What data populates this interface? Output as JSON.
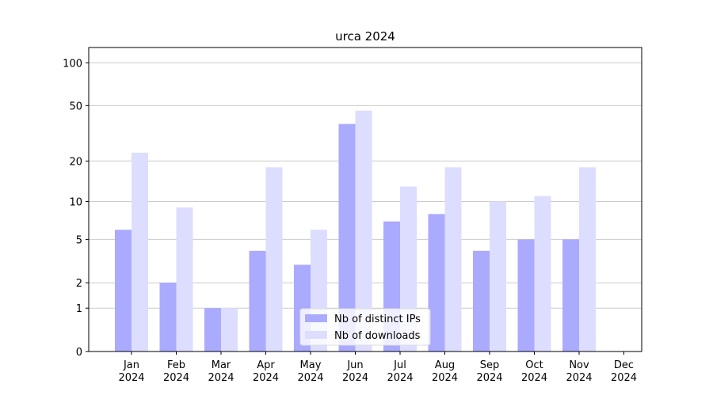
{
  "chart_data": {
    "type": "bar",
    "title": "urca 2024",
    "categories": [
      "Jan\n2024",
      "Feb\n2024",
      "Mar\n2024",
      "Apr\n2024",
      "May\n2024",
      "Jun\n2024",
      "Jul\n2024",
      "Aug\n2024",
      "Sep\n2024",
      "Oct\n2024",
      "Nov\n2024",
      "Dec\n2024"
    ],
    "series": [
      {
        "name": "Nb of distinct IPs",
        "color": "#aaaaff",
        "values": [
          6,
          2,
          1,
          4,
          3,
          37,
          7,
          8,
          4,
          5,
          5,
          0
        ]
      },
      {
        "name": "Nb of downloads",
        "color": "#ddddff",
        "values": [
          23,
          9,
          1,
          18,
          6,
          46,
          13,
          18,
          10,
          11,
          18,
          0
        ]
      }
    ],
    "scale": "log1p",
    "ylim": [
      0,
      128
    ],
    "yticks": [
      0,
      1,
      2,
      5,
      10,
      20,
      50,
      100
    ],
    "grid": true,
    "legend": "lower center"
  }
}
